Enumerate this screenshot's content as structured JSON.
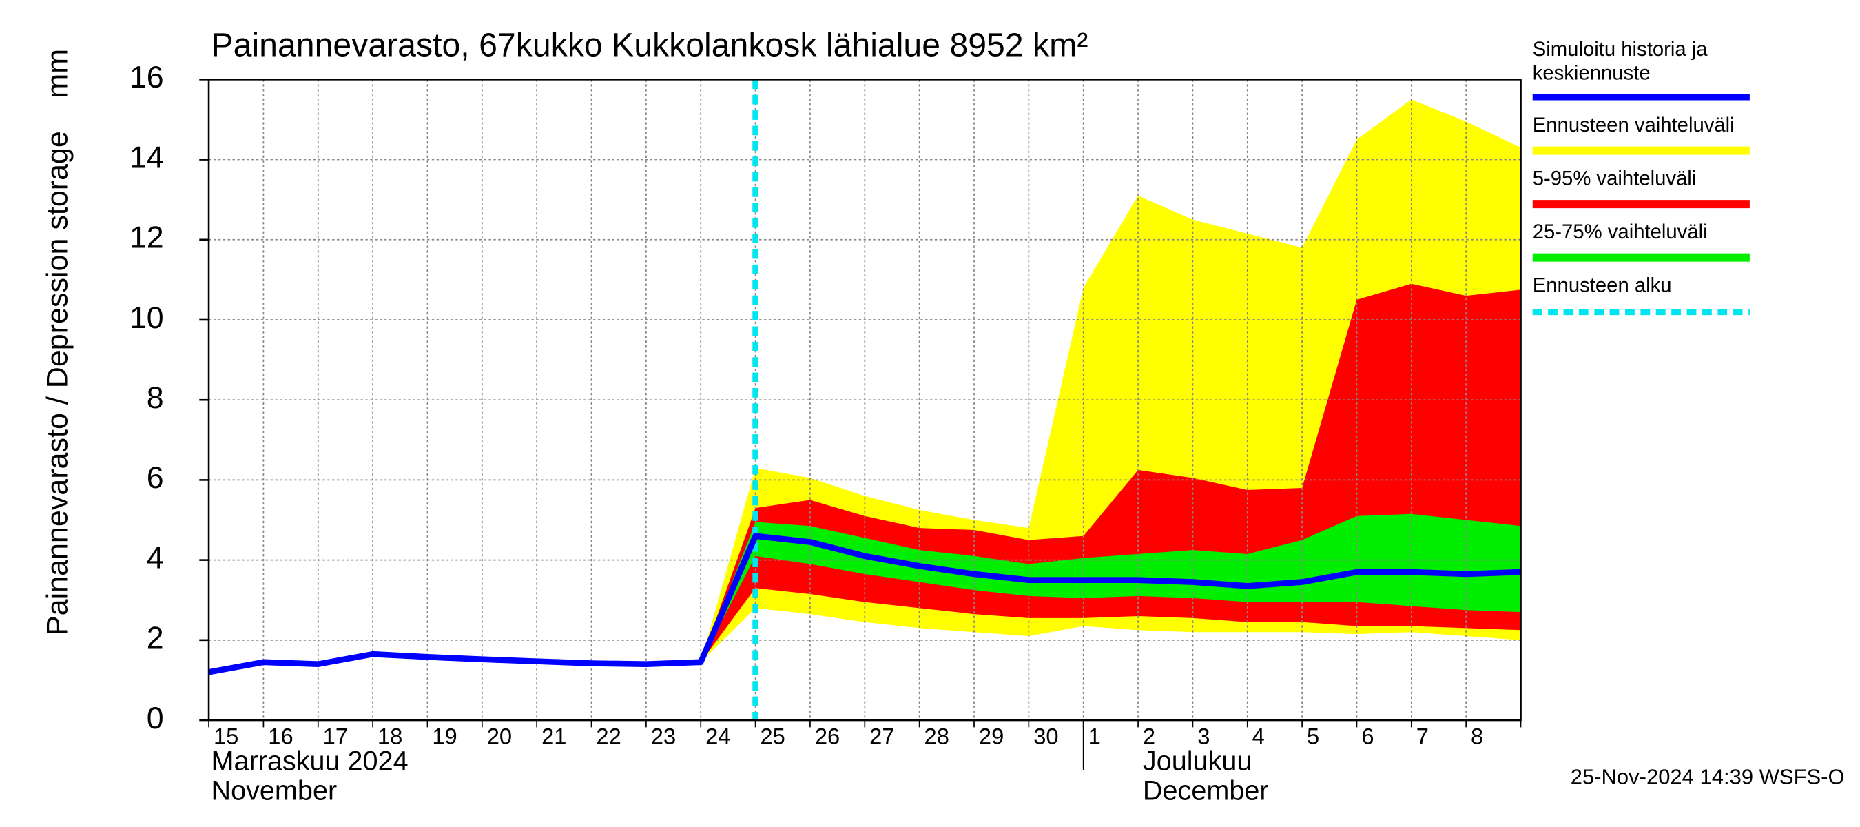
{
  "chart_data": {
    "type": "band-line",
    "title": "Painannevarasto, 67kukko Kukkolankosk lähialue 8952 km²",
    "y_label": "Painannevarasto / Depression storage",
    "y_unit": "mm",
    "categories": [
      "15",
      "16",
      "17",
      "18",
      "19",
      "20",
      "21",
      "22",
      "23",
      "24",
      "25",
      "26",
      "27",
      "28",
      "29",
      "30",
      "1",
      "2",
      "3",
      "4",
      "5",
      "6",
      "7",
      "8",
      null
    ],
    "month_labels": [
      {
        "index": 0,
        "lines": [
          "Marraskuu 2024",
          "November"
        ]
      },
      {
        "index": 16,
        "lines": [
          "Joulukuu",
          "December"
        ]
      }
    ],
    "ylim": [
      0,
      16
    ],
    "yticks": [
      0,
      2,
      4,
      6,
      8,
      10,
      12,
      14,
      16
    ],
    "grid": true,
    "bands": [
      {
        "name": "Ennusteen vaihteluväli",
        "color": "#ffff00",
        "upper": [
          null,
          null,
          null,
          null,
          null,
          null,
          null,
          null,
          null,
          1.45,
          6.3,
          6.05,
          5.6,
          5.25,
          5.0,
          4.8,
          10.8,
          13.1,
          12.5,
          12.15,
          11.8,
          14.5,
          15.5,
          14.95,
          14.3
        ],
        "lower": [
          null,
          null,
          null,
          null,
          null,
          null,
          null,
          null,
          null,
          1.45,
          2.8,
          2.65,
          2.45,
          2.3,
          2.2,
          2.1,
          2.35,
          2.25,
          2.2,
          2.2,
          2.2,
          2.15,
          2.2,
          2.1,
          2.0
        ]
      },
      {
        "name": "5-95% vaihteluväli",
        "color": "#ff0000",
        "upper": [
          null,
          null,
          null,
          null,
          null,
          null,
          null,
          null,
          null,
          1.45,
          5.3,
          5.5,
          5.1,
          4.8,
          4.75,
          4.5,
          4.6,
          6.25,
          6.05,
          5.75,
          5.8,
          10.5,
          10.9,
          10.6,
          10.75
        ],
        "lower": [
          null,
          null,
          null,
          null,
          null,
          null,
          null,
          null,
          null,
          1.45,
          3.3,
          3.15,
          2.95,
          2.8,
          2.65,
          2.55,
          2.55,
          2.6,
          2.55,
          2.45,
          2.45,
          2.35,
          2.35,
          2.3,
          2.25
        ]
      },
      {
        "name": "25-75% vaihteluväli",
        "color": "#00ee00",
        "upper": [
          null,
          null,
          null,
          null,
          null,
          null,
          null,
          null,
          null,
          1.45,
          4.95,
          4.85,
          4.55,
          4.25,
          4.1,
          3.9,
          4.05,
          4.15,
          4.25,
          4.15,
          4.5,
          5.1,
          5.15,
          5.0,
          4.85
        ],
        "lower": [
          null,
          null,
          null,
          null,
          null,
          null,
          null,
          null,
          null,
          1.45,
          4.1,
          3.9,
          3.65,
          3.45,
          3.25,
          3.1,
          3.05,
          3.1,
          3.05,
          2.95,
          2.95,
          2.95,
          2.85,
          2.75,
          2.7
        ]
      }
    ],
    "series": [
      {
        "name": "Simuloitu historia ja keskiennuste",
        "color": "#0000ff",
        "values": [
          1.2,
          1.45,
          1.4,
          1.65,
          1.58,
          1.52,
          1.47,
          1.42,
          1.4,
          1.45,
          4.6,
          4.45,
          4.1,
          3.85,
          3.65,
          3.5,
          3.5,
          3.5,
          3.45,
          3.35,
          3.45,
          3.7,
          3.7,
          3.65,
          3.7
        ]
      }
    ],
    "forecast_start": {
      "name": "Ennusteen alku",
      "color": "#00e5ee",
      "x": "25"
    },
    "timestamp": "25-Nov-2024 14:39 WSFS-O"
  }
}
